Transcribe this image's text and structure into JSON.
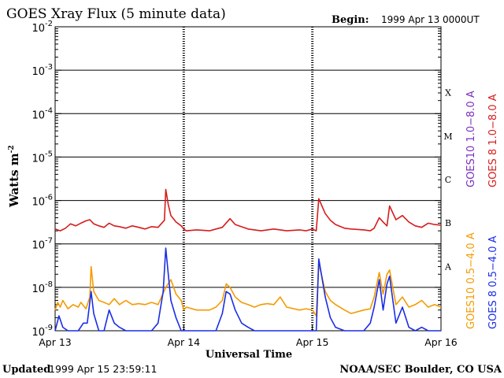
{
  "header": {
    "title": "GOES Xray Flux (5 minute data)",
    "begin_label": "Begin:",
    "begin_value": "1999 Apr 13 0000UT"
  },
  "footer": {
    "updated_label": "Updated",
    "updated_value": "1999 Apr 15 23:59:11",
    "credit": "NOAA/SEC Boulder, CO USA"
  },
  "chart_data": {
    "type": "line",
    "title": "GOES Xray Flux (5 minute data)",
    "xlabel": "Universal Time",
    "ylabel": "Watts m",
    "ylabel_sup": "-2",
    "yscale": "log",
    "ylim": [
      1e-09,
      0.01
    ],
    "xlim": [
      0,
      3
    ],
    "x_tick_labels": [
      "Apr 13",
      "Apr 14",
      "Apr 15",
      "Apr 16"
    ],
    "y_tick_labels": [
      {
        "base": "10",
        "exp": "-9"
      },
      {
        "base": "10",
        "exp": "-8"
      },
      {
        "base": "10",
        "exp": "-7"
      },
      {
        "base": "10",
        "exp": "-6"
      },
      {
        "base": "10",
        "exp": "-5"
      },
      {
        "base": "10",
        "exp": "-4"
      },
      {
        "base": "10",
        "exp": "-3"
      },
      {
        "base": "10",
        "exp": "-2"
      }
    ],
    "flare_classes": [
      "A",
      "B",
      "C",
      "M",
      "X"
    ],
    "grid": true,
    "legend": [
      {
        "label": "GOES10 1.0−8.0 A",
        "color": "#7b2fbe"
      },
      {
        "label": "GOES 8 1.0−8.0 A",
        "color": "#d61c1c"
      },
      {
        "label": "GOES10 0.5−4.0 A",
        "color": "#f59a00"
      },
      {
        "label": "GOES 8 0.5−4.0 A",
        "color": "#1a2ee6"
      }
    ],
    "series": [
      {
        "name": "GOES 8 1.0−8.0 A",
        "color": "#d61c1c",
        "x": [
          0,
          0.04,
          0.08,
          0.12,
          0.16,
          0.2,
          0.24,
          0.27,
          0.3,
          0.34,
          0.38,
          0.42,
          0.46,
          0.5,
          0.55,
          0.6,
          0.65,
          0.7,
          0.75,
          0.8,
          0.85,
          0.86,
          0.88,
          0.9,
          0.94,
          0.98,
          1.0,
          1.02,
          1.1,
          1.2,
          1.25,
          1.3,
          1.36,
          1.4,
          1.5,
          1.55,
          1.6,
          1.7,
          1.8,
          1.9,
          1.95,
          2.0,
          2.03,
          2.05,
          2.07,
          2.1,
          2.14,
          2.18,
          2.25,
          2.3,
          2.4,
          2.45,
          2.48,
          2.52,
          2.55,
          2.58,
          2.6,
          2.65,
          2.7,
          2.75,
          2.8,
          2.85,
          2.9,
          2.95,
          3.0
        ],
        "y": [
          2.2e-07,
          2e-07,
          2.3e-07,
          2.9e-07,
          2.6e-07,
          3e-07,
          3.4e-07,
          3.6e-07,
          2.9e-07,
          2.6e-07,
          2.4e-07,
          3e-07,
          2.6e-07,
          2.5e-07,
          2.3e-07,
          2.6e-07,
          2.4e-07,
          2.2e-07,
          2.5e-07,
          2.4e-07,
          3.5e-07,
          1.8e-06,
          8e-07,
          4.5e-07,
          3.2e-07,
          2.6e-07,
          2.2e-07,
          2e-07,
          2.1e-07,
          2e-07,
          2.2e-07,
          2.4e-07,
          3.8e-07,
          2.8e-07,
          2.2e-07,
          2.1e-07,
          2e-07,
          2.2e-07,
          2e-07,
          2.1e-07,
          2e-07,
          2.2e-07,
          2e-07,
          1.1e-06,
          8e-07,
          5e-07,
          3.5e-07,
          2.8e-07,
          2.3e-07,
          2.2e-07,
          2.1e-07,
          2e-07,
          2.3e-07,
          4e-07,
          3.2e-07,
          2.6e-07,
          7.5e-07,
          3.6e-07,
          4.5e-07,
          3.2e-07,
          2.6e-07,
          2.4e-07,
          3e-07,
          2.8e-07,
          2.7e-07
        ]
      },
      {
        "name": "GOES10 0.5−4.0 A",
        "color": "#f59a00",
        "x": [
          0,
          0.02,
          0.04,
          0.06,
          0.08,
          0.1,
          0.14,
          0.18,
          0.2,
          0.24,
          0.27,
          0.28,
          0.3,
          0.34,
          0.38,
          0.42,
          0.46,
          0.5,
          0.55,
          0.6,
          0.65,
          0.7,
          0.75,
          0.8,
          0.86,
          0.9,
          0.94,
          0.98,
          1.0,
          1.02,
          1.1,
          1.2,
          1.25,
          1.3,
          1.33,
          1.36,
          1.4,
          1.45,
          1.5,
          1.55,
          1.6,
          1.65,
          1.7,
          1.75,
          1.8,
          1.9,
          1.95,
          2.0,
          2.03,
          2.05,
          2.07,
          2.1,
          2.14,
          2.18,
          2.25,
          2.3,
          2.4,
          2.45,
          2.48,
          2.52,
          2.55,
          2.58,
          2.6,
          2.65,
          2.7,
          2.75,
          2.8,
          2.85,
          2.9,
          2.95,
          3.0
        ],
        "y": [
          3e-09,
          4.5e-09,
          3.5e-09,
          5e-09,
          4e-09,
          3.2e-09,
          4e-09,
          3.5e-09,
          4.5e-09,
          3.2e-09,
          6e-09,
          3e-08,
          8e-09,
          5e-09,
          4.5e-09,
          4e-09,
          5.5e-09,
          4e-09,
          5e-09,
          4e-09,
          4.2e-09,
          4e-09,
          4.5e-09,
          4e-09,
          1e-08,
          1.5e-08,
          7e-09,
          5e-09,
          3e-09,
          3.5e-09,
          3e-09,
          3e-09,
          3.5e-09,
          5e-09,
          1.2e-08,
          1e-08,
          6e-09,
          4.5e-09,
          4e-09,
          3.5e-09,
          4e-09,
          4.2e-09,
          4e-09,
          6e-09,
          3.5e-09,
          3e-09,
          3.2e-09,
          3e-09,
          2.2e-09,
          3.5e-08,
          2e-08,
          8e-09,
          5e-09,
          4e-09,
          3e-09,
          2.5e-09,
          3e-09,
          3.2e-09,
          6e-09,
          2.2e-08,
          7e-09,
          2e-08,
          2.5e-08,
          4e-09,
          6e-09,
          3.5e-09,
          4e-09,
          5e-09,
          3.5e-09,
          4e-09,
          3.5e-09
        ]
      },
      {
        "name": "GOES 8 0.5−4.0 A",
        "color": "#1a2ee6",
        "x": [
          0,
          0.03,
          0.06,
          0.1,
          0.14,
          0.18,
          0.22,
          0.25,
          0.28,
          0.3,
          0.34,
          0.38,
          0.42,
          0.46,
          0.5,
          0.55,
          0.6,
          0.65,
          0.7,
          0.75,
          0.8,
          0.84,
          0.86,
          0.88,
          0.9,
          0.94,
          0.98,
          1.0,
          1.02,
          1.1,
          1.2,
          1.25,
          1.3,
          1.33,
          1.36,
          1.4,
          1.45,
          1.5,
          1.55,
          1.6,
          1.7,
          1.8,
          1.9,
          1.95,
          2.0,
          2.03,
          2.05,
          2.07,
          2.1,
          2.14,
          2.18,
          2.25,
          2.3,
          2.4,
          2.45,
          2.48,
          2.52,
          2.55,
          2.58,
          2.6,
          2.65,
          2.7,
          2.75,
          2.8,
          2.85,
          2.9,
          2.95,
          3.0
        ],
        "y": [
          1e-09,
          2.2e-09,
          1.2e-09,
          1e-09,
          1e-09,
          1e-09,
          1.5e-09,
          1.5e-09,
          8e-09,
          2.5e-09,
          1e-09,
          1e-09,
          3e-09,
          1.5e-09,
          1.2e-09,
          1e-09,
          1e-09,
          1e-09,
          1e-09,
          1e-09,
          1.5e-09,
          8e-09,
          8e-08,
          2e-08,
          5e-09,
          2e-09,
          1e-09,
          1e-09,
          1e-09,
          1e-09,
          1e-09,
          1e-09,
          2.5e-09,
          8e-09,
          7e-09,
          3e-09,
          1.5e-09,
          1.2e-09,
          1e-09,
          1e-09,
          1e-09,
          1e-09,
          1e-09,
          1e-09,
          1e-09,
          1e-09,
          4.5e-08,
          2e-08,
          6e-09,
          2e-09,
          1.2e-09,
          1e-09,
          1e-09,
          1e-09,
          1.5e-09,
          3.5e-09,
          1.5e-08,
          3e-09,
          1.2e-08,
          1.8e-08,
          1.5e-09,
          3.5e-09,
          1.2e-09,
          1e-09,
          1.2e-09,
          1e-09,
          1e-09,
          1e-09
        ]
      }
    ]
  }
}
